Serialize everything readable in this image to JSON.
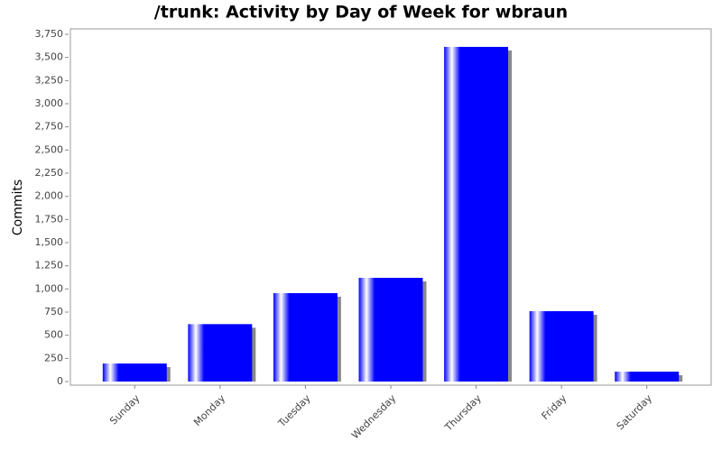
{
  "chart_data": {
    "type": "bar",
    "title": "/trunk: Activity by Day of Week for wbraun",
    "y_label": "Commits",
    "categories": [
      "Sunday",
      "Monday",
      "Tuesday",
      "Wednesday",
      "Thursday",
      "Friday",
      "Saturday"
    ],
    "values": [
      195,
      620,
      955,
      1120,
      3614,
      760,
      107
    ],
    "color": "#0000ff",
    "ylim": [
      0,
      3750
    ],
    "yticks": [
      0,
      250,
      500,
      750,
      {
        "value": 1000,
        "label": "1,000"
      },
      {
        "value": 1250,
        "label": "1,250"
      },
      {
        "value": 1500,
        "label": "1,500"
      },
      {
        "value": 1750,
        "label": "1,750"
      },
      {
        "value": 2000,
        "label": "2,000"
      },
      {
        "value": 2250,
        "label": "2,250"
      },
      {
        "value": 2500,
        "label": "2,500"
      },
      {
        "value": 2750,
        "label": "2,750"
      },
      {
        "value": 3000,
        "label": "3,000"
      },
      {
        "value": 3250,
        "label": "3,250"
      },
      {
        "value": 3500,
        "label": "3,500"
      },
      {
        "value": 3750,
        "label": "3,750"
      }
    ],
    "grid": false
  }
}
